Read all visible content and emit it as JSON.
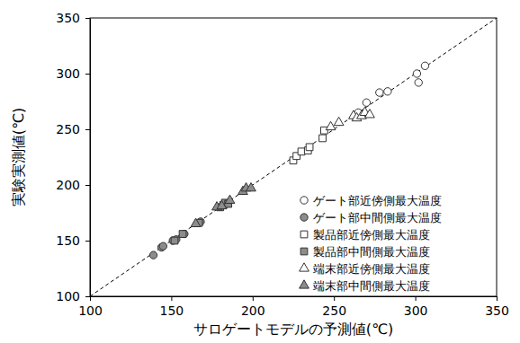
{
  "chart_data": {
    "type": "scatter",
    "x_label": "サロゲートモデルの予測値(℃)",
    "y_label": "実験実測値(℃)",
    "xlim": [
      100,
      350
    ],
    "ylim": [
      100,
      350
    ],
    "xticks": [
      100,
      150,
      200,
      250,
      300,
      350
    ],
    "yticks": [
      100,
      150,
      200,
      250,
      300,
      350
    ],
    "grid": false,
    "legend": "lower right",
    "series": [
      {
        "name": "ゲート部近傍側最大温度",
        "marker": "circle",
        "color": "#ffffff",
        "x": [
          265,
          270,
          278,
          283,
          301,
          302,
          306
        ],
        "values": [
          265,
          274,
          283,
          284,
          300,
          292,
          307
        ]
      },
      {
        "name": "ゲート部中間側最大温度",
        "marker": "circle",
        "color": "#8c8c8c",
        "x": [
          139,
          144,
          145,
          151,
          153,
          158,
          168
        ],
        "values": [
          137,
          144,
          145,
          150,
          151,
          156,
          167
        ]
      },
      {
        "name": "製品部近傍側最大温度",
        "marker": "square",
        "color": "#ffffff",
        "x": [
          225,
          227,
          230,
          234,
          235,
          243,
          244
        ],
        "values": [
          222,
          226,
          230,
          231,
          234,
          242,
          249
        ]
      },
      {
        "name": "製品部中間側最大温度",
        "marker": "square",
        "color": "#8c8c8c",
        "x": [
          152,
          157,
          167,
          180,
          182,
          183,
          185
        ],
        "values": [
          150,
          156,
          166,
          180,
          182,
          184,
          183
        ]
      },
      {
        "name": "端末部近傍側最大温度",
        "marker": "triangle",
        "color": "#ffffff",
        "x": [
          248,
          253,
          262,
          264,
          267,
          269,
          272
        ],
        "values": [
          252,
          256,
          262,
          260,
          262,
          265,
          263
        ]
      },
      {
        "name": "端末部中間側最大温度",
        "marker": "triangle",
        "color": "#8c8c8c",
        "x": [
          165,
          178,
          181,
          186,
          194,
          196,
          199
        ],
        "values": [
          165,
          180,
          181,
          186,
          194,
          197,
          197
        ]
      }
    ]
  }
}
